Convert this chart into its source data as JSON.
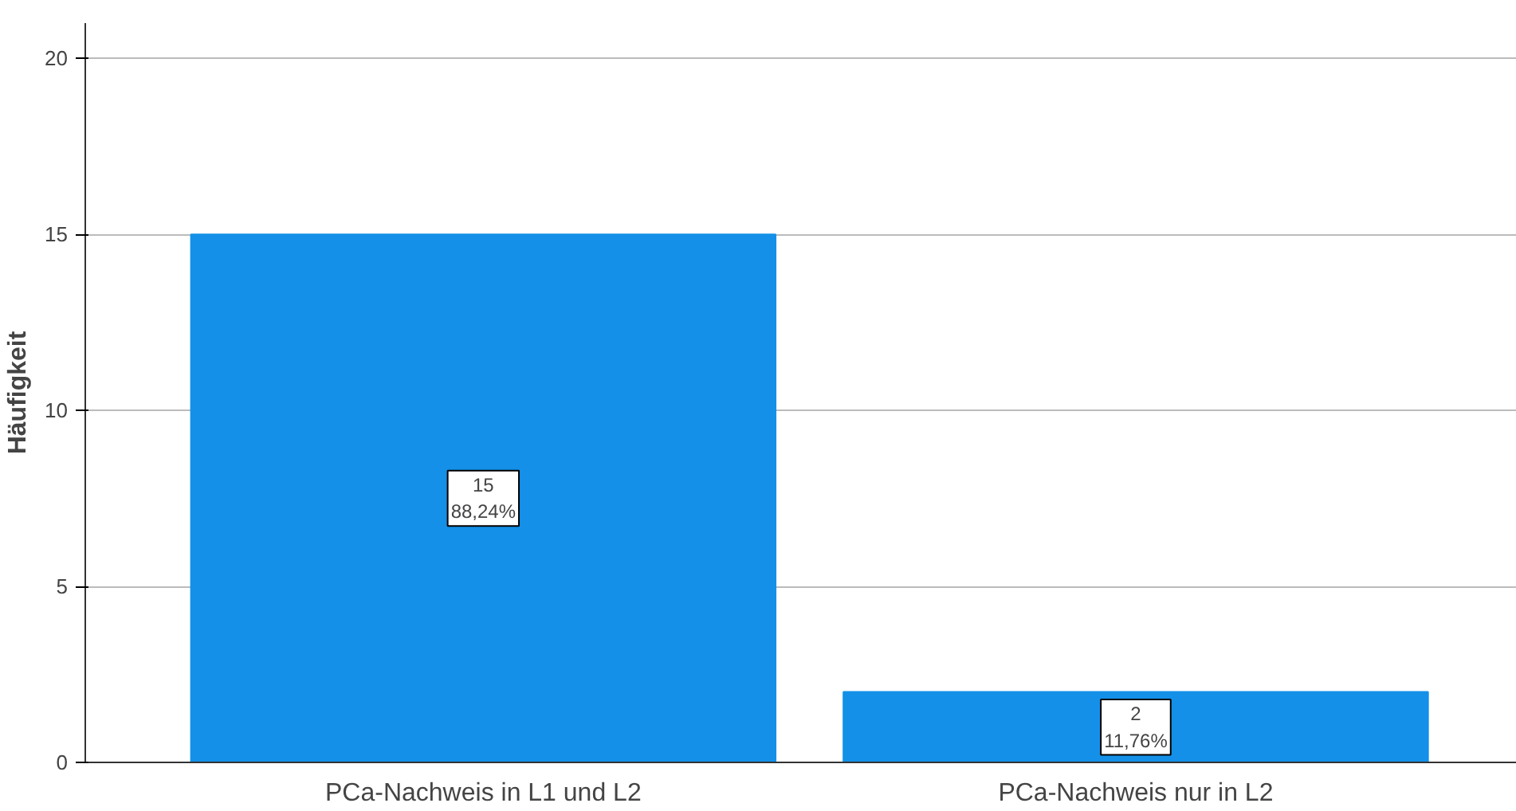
{
  "chart_data": {
    "type": "bar",
    "ylabel": "Häufigkeit",
    "categories": [
      "PCa-Nachweis in L1 und L2",
      "PCa-Nachweis nur in L2"
    ],
    "values": [
      15,
      2
    ],
    "color": "#1490e8",
    "value_labels": [
      "15\n88,24%",
      "2\n11,76%"
    ],
    "ylim": [
      0,
      21
    ],
    "yticks": [
      0,
      5,
      10,
      15,
      20
    ],
    "grid": "y"
  }
}
